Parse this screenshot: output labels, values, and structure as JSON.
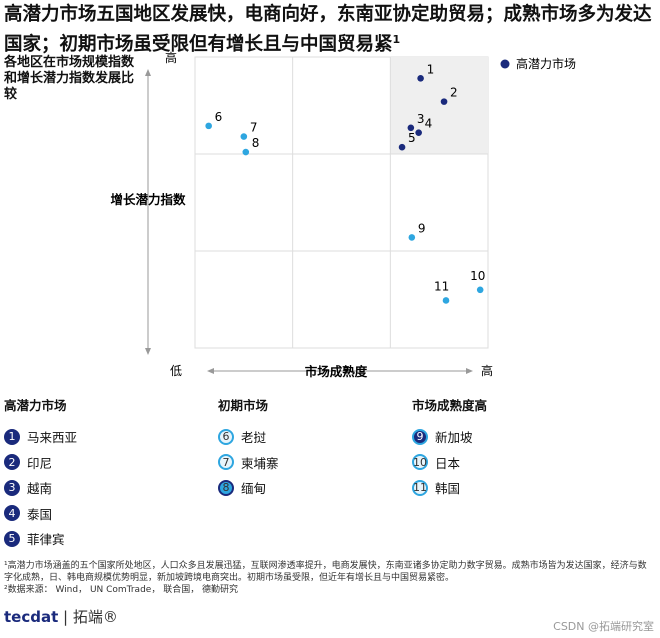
{
  "chart_data": {
    "type": "scatter",
    "title": "高潜力市场五国地区发展快，电商向好，东南亚协定助贸易；成熟市场多为发达国家；初期市场虽受限但有增长且与中国贸易紧",
    "title_note": "1",
    "subtitle": "各地区在市场规模指数和增长潜力指数发展比较",
    "y_label": "增长潜力指数",
    "x_label": "市场成熟度",
    "xlim": [
      0,
      3
    ],
    "ylim": [
      0,
      3
    ],
    "xticks": [
      {
        "value": 0,
        "label": "低"
      },
      {
        "value": 3,
        "label": "高"
      }
    ],
    "yticks": [
      {
        "value": 3,
        "label": "高"
      }
    ],
    "gridlines_x": [
      1,
      2
    ],
    "gridlines_y": [
      1,
      2
    ],
    "series": [
      {
        "name": "高潜力市场",
        "color": "#1a2a7c",
        "labels": [
          "1",
          "2",
          "3",
          "4",
          "5"
        ],
        "x": [
          2.31,
          2.55,
          2.21,
          2.29,
          2.12
        ],
        "y": [
          2.78,
          2.54,
          2.27,
          2.22,
          2.07
        ]
      },
      {
        "color": "#2ea6e0",
        "labels": [
          "6",
          "7",
          "8",
          "9",
          "10",
          "11"
        ],
        "x": [
          0.14,
          0.5,
          0.52,
          2.22,
          2.92,
          2.57
        ],
        "y": [
          2.29,
          2.18,
          2.02,
          1.14,
          0.6,
          0.49
        ]
      }
    ]
  },
  "groups": [
    {
      "title": "高潜力市场",
      "items": [
        {
          "badge": "1",
          "name": "马来西亚"
        },
        {
          "badge": "2",
          "name": "印尼"
        },
        {
          "badge": "3",
          "name": "越南"
        },
        {
          "badge": "4",
          "name": "泰国"
        },
        {
          "badge": "5",
          "name": "菲律宾"
        }
      ]
    },
    {
      "title": "初期市场",
      "items": [
        {
          "badge": "6",
          "name": "老挝"
        },
        {
          "badge": "7",
          "name": "柬埔寨"
        },
        {
          "badge": "8",
          "name": "缅甸"
        }
      ]
    },
    {
      "title": "市场成熟度高",
      "items": [
        {
          "badge": "9",
          "name": "新加坡"
        },
        {
          "badge": "10",
          "name": "日本"
        },
        {
          "badge": "11",
          "name": "韩国"
        }
      ]
    }
  ],
  "footnote": "¹高潜力市场涵盖的五个国家所处地区，人口众多且发展迅猛，互联网渗透率提升，电商发展快，东南亚诸多协定助力数字贸易。成熟市场皆为发达国家，经济与数字化成熟，日、韩电商规模优势明显，新加坡跨境电商突出。初期市场虽受限，但近年有增长且与中国贸易紧密。",
  "source": "²数据来源： Wind， UN ComTrade， 联合国， 德勤研究",
  "logo": {
    "brand": "tecdat",
    "name": "拓端®"
  },
  "watermark": "CSDN @拓端研究室"
}
